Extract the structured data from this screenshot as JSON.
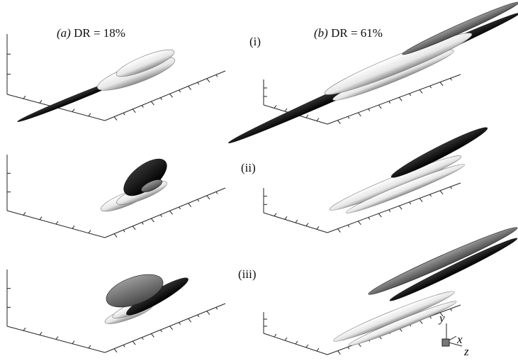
{
  "panels": [
    {
      "label": "(a)",
      "caption": "DR = 18%"
    },
    {
      "label": "(b)",
      "caption": "DR = 61%"
    }
  ],
  "rows": [
    "(i)",
    "(ii)",
    "(iii)"
  ],
  "axes": {
    "y": "y",
    "x": "x",
    "z": "z"
  }
}
